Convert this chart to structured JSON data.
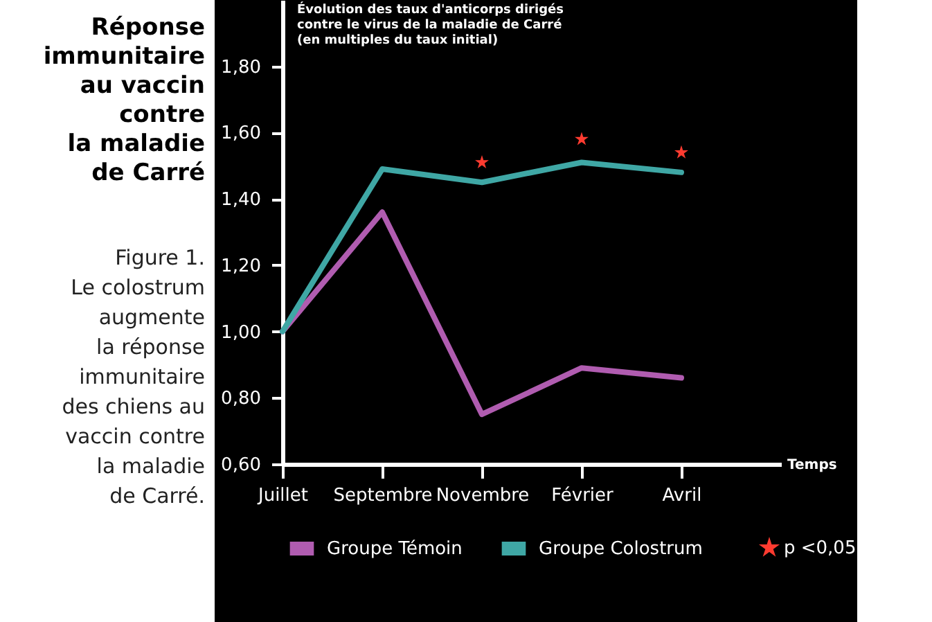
{
  "chart_data": {
    "type": "line",
    "title": "Réponse\nimmunitaire\nau vaccin\ncontre\nla maladie\nde Carré",
    "subtitle": "Figure 1.\nLe colostrum\naugmente\nla réponse\nimmunitaire\ndes chiens au\nvaccin contre\nla maladie\nde Carré.",
    "ylabel": "Évolution des taux d'anticorps dirigés\ncontre le virus de la maladie de Carré\n(en multiples du taux initial)",
    "xlabel": "Temps",
    "categories": [
      "Juillet",
      "Septembre",
      "Novembre",
      "Février",
      "Avril"
    ],
    "series": [
      {
        "name": "Groupe Témoin",
        "color": "#b05cb0",
        "values": [
          1.0,
          1.36,
          0.75,
          0.89,
          0.86
        ]
      },
      {
        "name": "Groupe Colostrum",
        "color": "#3fa7a5",
        "values": [
          1.0,
          1.49,
          1.45,
          1.51,
          1.48
        ]
      },
      {
        "name": "p <0,05",
        "type": "scatter",
        "marker": "star",
        "color": "#ff3b30",
        "values": [
          null,
          null,
          1.51,
          1.58,
          1.54
        ]
      }
    ],
    "ylim": [
      0.6,
      2.0
    ],
    "yticks": [
      {
        "value": 0.6,
        "label": "0,60"
      },
      {
        "value": 0.8,
        "label": "0,80"
      },
      {
        "value": 1.0,
        "label": "1,00"
      },
      {
        "value": 1.2,
        "label": "1,20"
      },
      {
        "value": 1.4,
        "label": "1,40"
      },
      {
        "value": 1.6,
        "label": "1,60"
      },
      {
        "value": 1.8,
        "label": "1,80"
      }
    ],
    "grid": false,
    "legend": "bottom",
    "marker": "none",
    "line_style": "solid"
  }
}
